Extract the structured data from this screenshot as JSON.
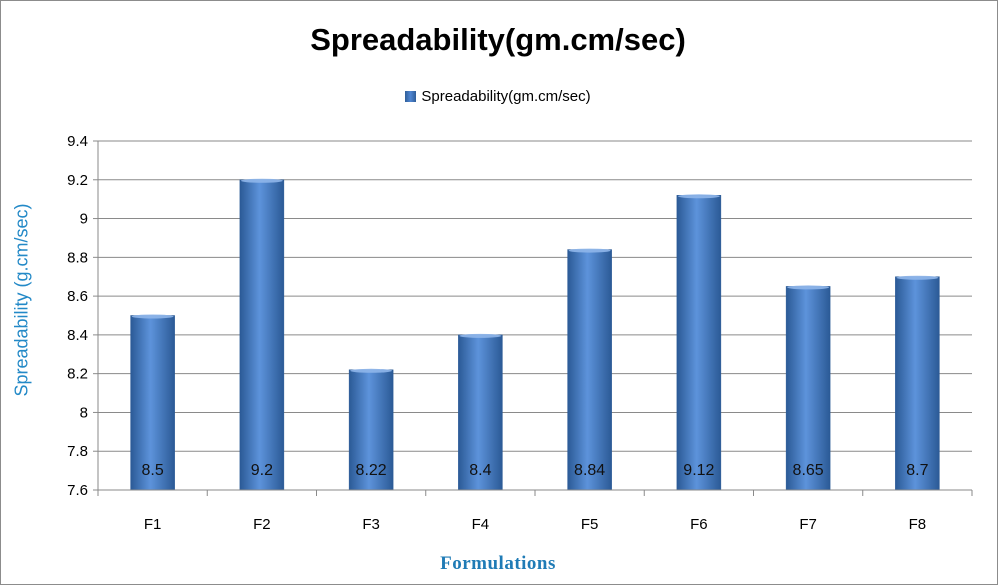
{
  "chart_data": {
    "type": "bar",
    "title": "Spreadability(gm.cm/sec)",
    "xlabel": "Formulations",
    "ylabel": "Spreadability (g.cm/sec)",
    "categories": [
      "F1",
      "F2",
      "F3",
      "F4",
      "F5",
      "F6",
      "F7",
      "F8"
    ],
    "series": [
      {
        "name": "Spreadability(gm.cm/sec)",
        "values": [
          8.5,
          9.2,
          8.22,
          8.4,
          8.84,
          9.12,
          8.65,
          8.7
        ],
        "labels": [
          "8.5",
          "9.2",
          "8.22",
          "8.4",
          "8.84",
          "9.12",
          "8.65",
          "8.7"
        ]
      }
    ],
    "yticks": [
      "7.6",
      "7.8",
      "8",
      "8.2",
      "8.4",
      "8.6",
      "8.8",
      "9",
      "9.2",
      "9.4"
    ],
    "ylim": [
      7.6,
      9.4
    ],
    "grid": true,
    "legend_position": "top",
    "colors": {
      "bar": "#4a7fc8",
      "bar_dark": "#2b5a96",
      "axis_title": "#1f7bb6"
    }
  }
}
